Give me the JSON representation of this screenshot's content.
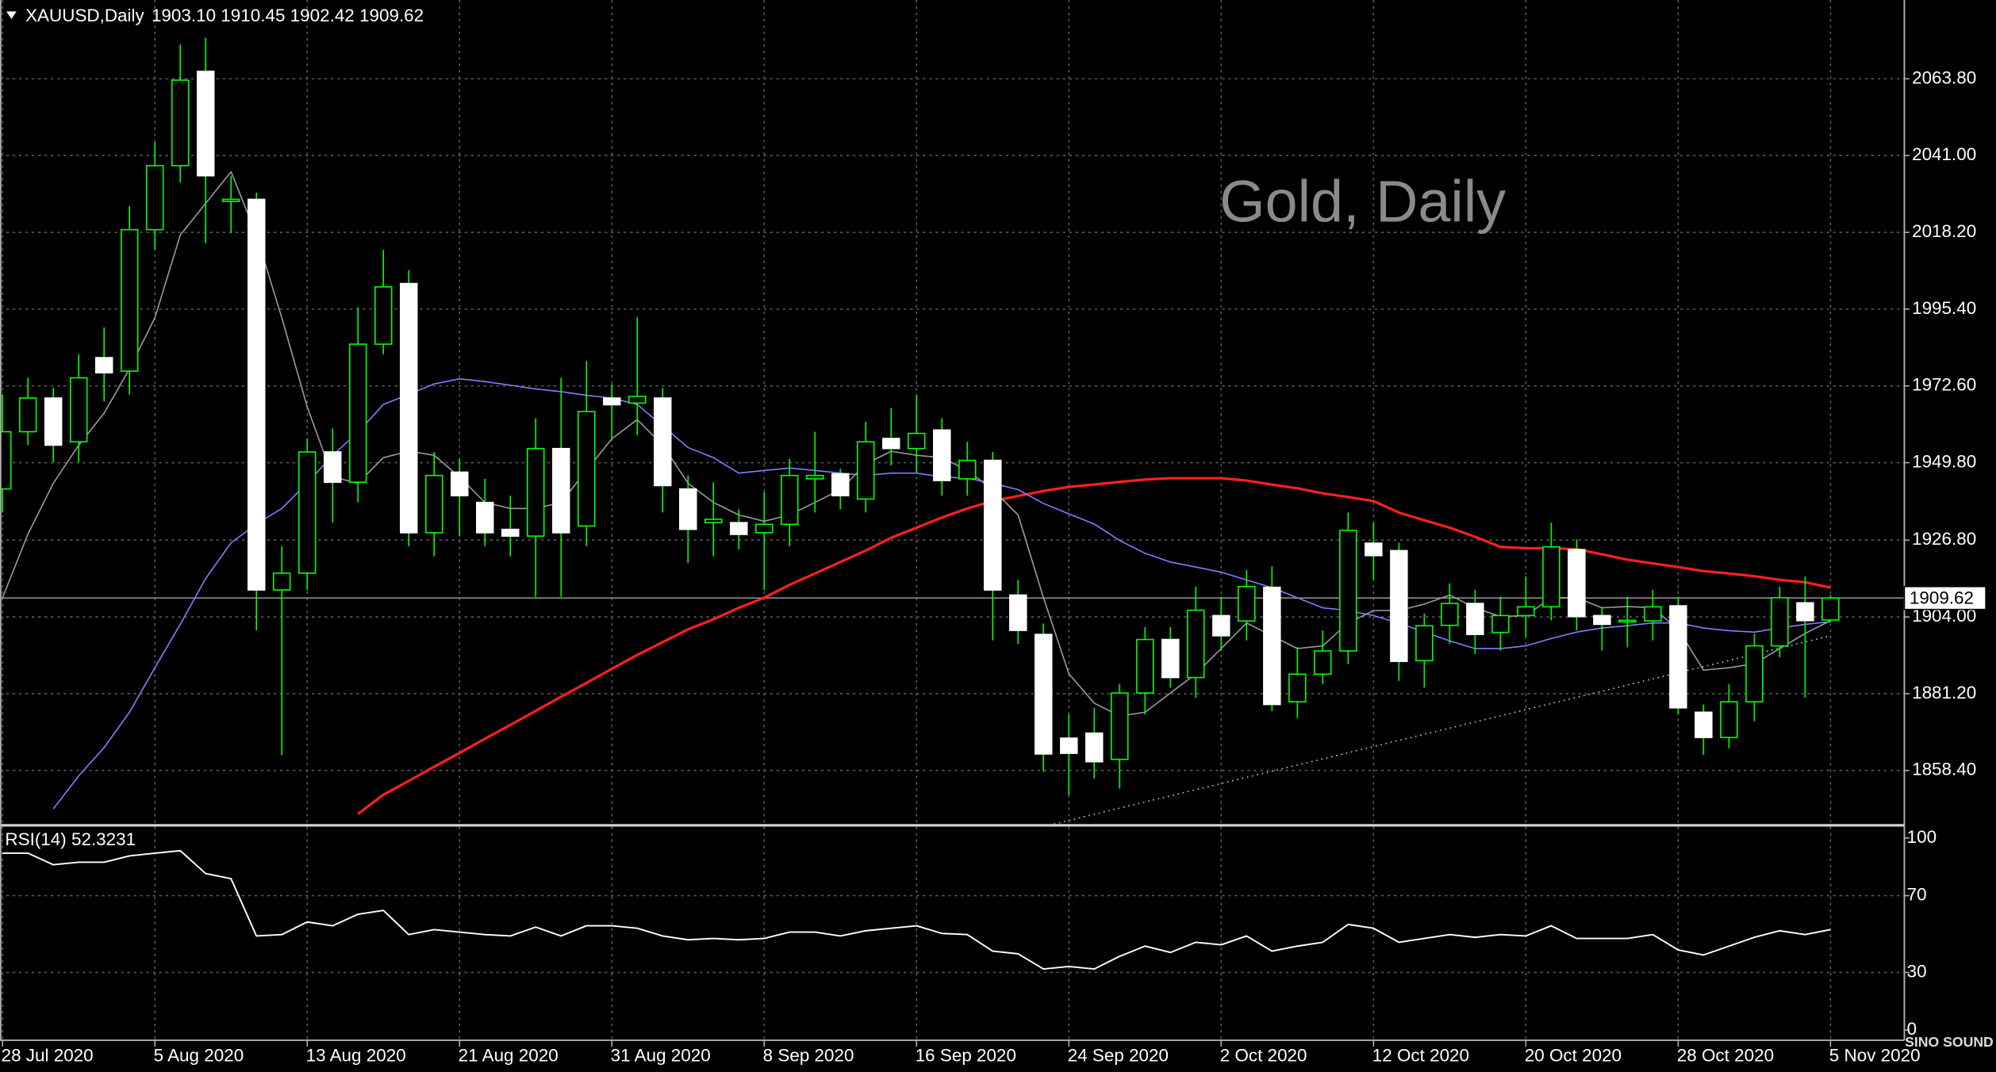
{
  "chart_data": [
    {
      "type": "candlestick",
      "title": "XAUUSD,Daily",
      "ohlc_text": "1903.10 1910.45 1902.42 1909.62",
      "watermark": "Gold, Daily",
      "categories": [
        "28 Jul 2020",
        null,
        null,
        null,
        null,
        null,
        "5 Aug 2020",
        null,
        null,
        null,
        null,
        null,
        "13 Aug 2020",
        null,
        null,
        null,
        null,
        null,
        "21 Aug 2020",
        null,
        null,
        null,
        null,
        null,
        "31 Aug 2020",
        null,
        null,
        null,
        null,
        null,
        "8 Sep 2020",
        null,
        null,
        null,
        null,
        null,
        "16 Sep 2020",
        null,
        null,
        null,
        null,
        null,
        "24 Sep 2020",
        null,
        null,
        null,
        null,
        null,
        "2 Oct 2020",
        null,
        null,
        null,
        null,
        null,
        "12 Oct 2020",
        null,
        null,
        null,
        null,
        null,
        "20 Oct 2020",
        null,
        null,
        null,
        null,
        null,
        "28 Oct 2020",
        null,
        null,
        null,
        null,
        null,
        "5 Nov 2020"
      ],
      "open": [
        1942,
        1959,
        1969,
        1956,
        1981,
        1977,
        2019,
        2038,
        2066,
        2027.4,
        2028,
        1912,
        1917,
        1953,
        1944,
        1985,
        2003,
        1929,
        1947,
        1938,
        1930,
        1928,
        1954,
        1931,
        1969,
        1967.5,
        1969,
        1942,
        1932,
        1932,
        1929,
        1931.5,
        1945,
        1946.5,
        1939,
        1957,
        1954,
        1959.5,
        1945,
        1950.5,
        1910.5,
        1898.8,
        1868,
        1869.5,
        1861.7,
        1881.4,
        1897.3,
        1886,
        1904.4,
        1902.8,
        1912.8,
        1878.8,
        1887,
        1893.9,
        1925.9,
        1923.7,
        1891,
        1901.5,
        1908,
        1899.4,
        1904.4,
        1907,
        1924,
        1904.4,
        1902.5,
        1902.8,
        1907.3,
        1875.7,
        1868.2,
        1878.8,
        1895.4,
        1908.2,
        1903.1
      ],
      "high": [
        1970,
        1975,
        1972,
        1982,
        1990,
        2026,
        2045,
        2074,
        2076,
        2035,
        2030,
        1925,
        1957,
        1960,
        1996,
        2013,
        2007,
        1953,
        1951,
        1945,
        1940,
        1963,
        1975,
        1980,
        1973,
        1993,
        1972,
        1946,
        1944,
        1936,
        1941,
        1951,
        1959,
        1948,
        1962,
        1966,
        1970,
        1963,
        1956,
        1953,
        1915,
        1902,
        1875,
        1877,
        1884,
        1901,
        1901,
        1913,
        1910,
        1918,
        1919,
        1895,
        1900,
        1935,
        1932,
        1926,
        1905,
        1914,
        1912,
        1910,
        1916,
        1932,
        1927,
        1907,
        1910,
        1912,
        1910,
        1878,
        1884,
        1899,
        1913,
        1916,
        1910.45
      ],
      "low": [
        1935,
        1955,
        1950,
        1950,
        1968,
        1970,
        2013,
        2033,
        2015,
        2018,
        1900,
        1863,
        1912,
        1932,
        1938,
        1982,
        1925,
        1922,
        1928,
        1925,
        1922,
        1910,
        1910,
        1925,
        1957,
        1958,
        1935,
        1920,
        1922,
        1924,
        1912,
        1925,
        1935,
        1936,
        1935,
        1949,
        1947,
        1940,
        1940,
        1897,
        1896,
        1858,
        1851,
        1856,
        1853,
        1875,
        1883,
        1880,
        1894,
        1897,
        1876,
        1874,
        1884,
        1890,
        1915,
        1885,
        1883,
        1896,
        1893,
        1894,
        1898,
        1903,
        1900,
        1894,
        1895,
        1897,
        1875,
        1863,
        1865,
        1873,
        1892,
        1880,
        1902.42
      ],
      "close": [
        1959,
        1969,
        1955,
        1975,
        1976.5,
        2019,
        2038,
        2063.4,
        2035,
        2028,
        1912,
        1917,
        1953,
        1944,
        1985,
        2002,
        1929,
        1946,
        1940,
        1929,
        1928,
        1954,
        1929,
        1965,
        1967,
        1969.5,
        1943,
        1930,
        1933,
        1928.5,
        1931.5,
        1946,
        1946,
        1940,
        1956,
        1954,
        1958.5,
        1944.5,
        1950.5,
        1912,
        1900,
        1863.3,
        1863.5,
        1861,
        1881.4,
        1897.3,
        1886,
        1906,
        1898.4,
        1913,
        1878,
        1887,
        1893.9,
        1929.7,
        1922.2,
        1890.8,
        1901.4,
        1908,
        1898.8,
        1904.4,
        1907,
        1924.8,
        1904.1,
        1901.8,
        1903,
        1907,
        1877,
        1868.2,
        1878.8,
        1895.4,
        1909.7,
        1902.9,
        1909.62
      ],
      "up_color": "#000000",
      "down_color": "#ffffff",
      "wick_color": "#00ff00",
      "series": [
        {
          "color": "#ff2020",
          "values": [
            null,
            null,
            null,
            null,
            null,
            null,
            null,
            null,
            null,
            null,
            null,
            null,
            null,
            null,
            1845.5,
            1851.2,
            1855.3,
            1859.5,
            1863.6,
            1867.8,
            1871.9,
            1876.1,
            1880.3,
            1884.4,
            1888.6,
            1892.7,
            1896.5,
            1900.3,
            1903.3,
            1906.7,
            1909.7,
            1913.5,
            1916.9,
            1920.3,
            1923.7,
            1927.5,
            1930.5,
            1933.5,
            1936.2,
            1938.4,
            1939.9,
            1941.4,
            1942.6,
            1943.3,
            1944.1,
            1944.8,
            1945.2,
            1945.2,
            1945.2,
            1944.5,
            1943.3,
            1942.2,
            1940.7,
            1939.6,
            1938.4,
            1935.0,
            1932.7,
            1930.5,
            1927.8,
            1924.8,
            1924.4,
            1924.4,
            1924.1,
            1922.6,
            1921.0,
            1919.9,
            1918.8,
            1917.6,
            1916.9,
            1916.1,
            1915.0,
            1914.3,
            1912.7
          ]
        },
        {
          "color": "#7f7fff",
          "values": [
            null,
            null,
            1847.0,
            1856.8,
            1865.2,
            1875.7,
            1888.9,
            1901.8,
            1915.4,
            1926.0,
            1931.6,
            1936.2,
            1943.7,
            1952.0,
            1958.8,
            1967.1,
            1970.1,
            1973.2,
            1974.7,
            1973.9,
            1972.8,
            1971.7,
            1970.9,
            1969.8,
            1969.0,
            1967.1,
            1960.7,
            1954.3,
            1951.3,
            1946.7,
            1947.5,
            1948.2,
            1947.5,
            1946.7,
            1946.0,
            1946.7,
            1946.7,
            1945.6,
            1945.2,
            1943.7,
            1941.8,
            1937.7,
            1934.6,
            1931.6,
            1926.7,
            1922.9,
            1920.3,
            1918.8,
            1917.3,
            1915.0,
            1912.7,
            1909.7,
            1906.7,
            1905.9,
            1904.4,
            1902.2,
            1899.5,
            1896.9,
            1894.6,
            1894.6,
            1895.4,
            1897.6,
            1899.5,
            1900.7,
            1901.4,
            1902.2,
            1902.2,
            1900.7,
            1899.9,
            1899.5,
            1900.7,
            1901.8,
            1902.6
          ]
        },
        {
          "color": "#9a9a9a",
          "values": [
            1909.7,
            1928.6,
            1943.7,
            1955.0,
            1964.5,
            1977.7,
            1992.8,
            2017.4,
            2026.8,
            2036.2,
            2017.4,
            1992.8,
            1966.4,
            1945.6,
            1943.7,
            1951.3,
            1953.2,
            1952.0,
            1945.6,
            1938.0,
            1936.2,
            1936.2,
            1938.0,
            1947.5,
            1956.9,
            1962.6,
            1955.0,
            1943.7,
            1938.0,
            1934.3,
            1932.4,
            1934.3,
            1938.0,
            1941.8,
            1949.4,
            1953.2,
            1952.0,
            1951.3,
            1947.5,
            1941.8,
            1934.3,
            1909.7,
            1887.1,
            1878.4,
            1874.6,
            1875.7,
            1881.4,
            1887.1,
            1894.6,
            1902.2,
            1898.4,
            1894.6,
            1895.4,
            1902.2,
            1905.9,
            1905.9,
            1907.8,
            1910.5,
            1906.7,
            1904.1,
            1904.4,
            1909.7,
            1909.7,
            1906.7,
            1907.1,
            1906.7,
            1900.3,
            1888.2,
            1888.9,
            1890.1,
            1894.6,
            1899.1,
            1902.9
          ]
        }
      ],
      "ylim": [
        1842.5,
        2087.2
      ],
      "yticks": [
        {
          "value": 2063.8,
          "label": "2063.80"
        },
        {
          "value": 2041,
          "label": "2041.00"
        },
        {
          "value": 2018.2,
          "label": "2018.20"
        },
        {
          "value": 1995.4,
          "label": "1995.40"
        },
        {
          "value": 1972.6,
          "label": "1972.60"
        },
        {
          "value": 1949.8,
          "label": "1949.80"
        },
        {
          "value": 1926.8,
          "label": "1926.80"
        },
        {
          "value": 1904,
          "label": "1904.00"
        },
        {
          "value": 1881.2,
          "label": "1881.20"
        },
        {
          "value": 1858.4,
          "label": "1858.40"
        }
      ],
      "last_price": 1909.62,
      "grid": true
    },
    {
      "type": "line",
      "title": "RSI(14) 52.3231",
      "color": "#ffffff",
      "values": [
        92.1,
        92.1,
        86.1,
        87.4,
        87.4,
        90.7,
        92.1,
        93.4,
        81.5,
        78.8,
        49.0,
        49.7,
        56.3,
        54.3,
        60.3,
        62.3,
        49.7,
        52.3,
        51.0,
        49.7,
        49.0,
        53.6,
        49.0,
        54.3,
        54.3,
        53.0,
        49.0,
        47.0,
        47.7,
        47.0,
        47.7,
        51.0,
        51.0,
        49.0,
        51.7,
        53.0,
        54.3,
        50.3,
        49.7,
        41.1,
        39.7,
        31.8,
        33.1,
        31.8,
        38.4,
        43.7,
        40.4,
        45.7,
        44.4,
        49.0,
        41.1,
        43.7,
        45.7,
        55.0,
        53.0,
        45.7,
        47.7,
        49.7,
        48.3,
        49.7,
        49.0,
        54.3,
        47.7,
        47.7,
        47.7,
        49.7,
        41.7,
        39.1,
        43.7,
        48.3,
        51.7,
        49.7,
        52.3231
      ],
      "ylim": [
        0,
        100
      ],
      "yticks": [
        100,
        70,
        30,
        0
      ],
      "grid": true
    }
  ],
  "logo": "SINO SOUND"
}
